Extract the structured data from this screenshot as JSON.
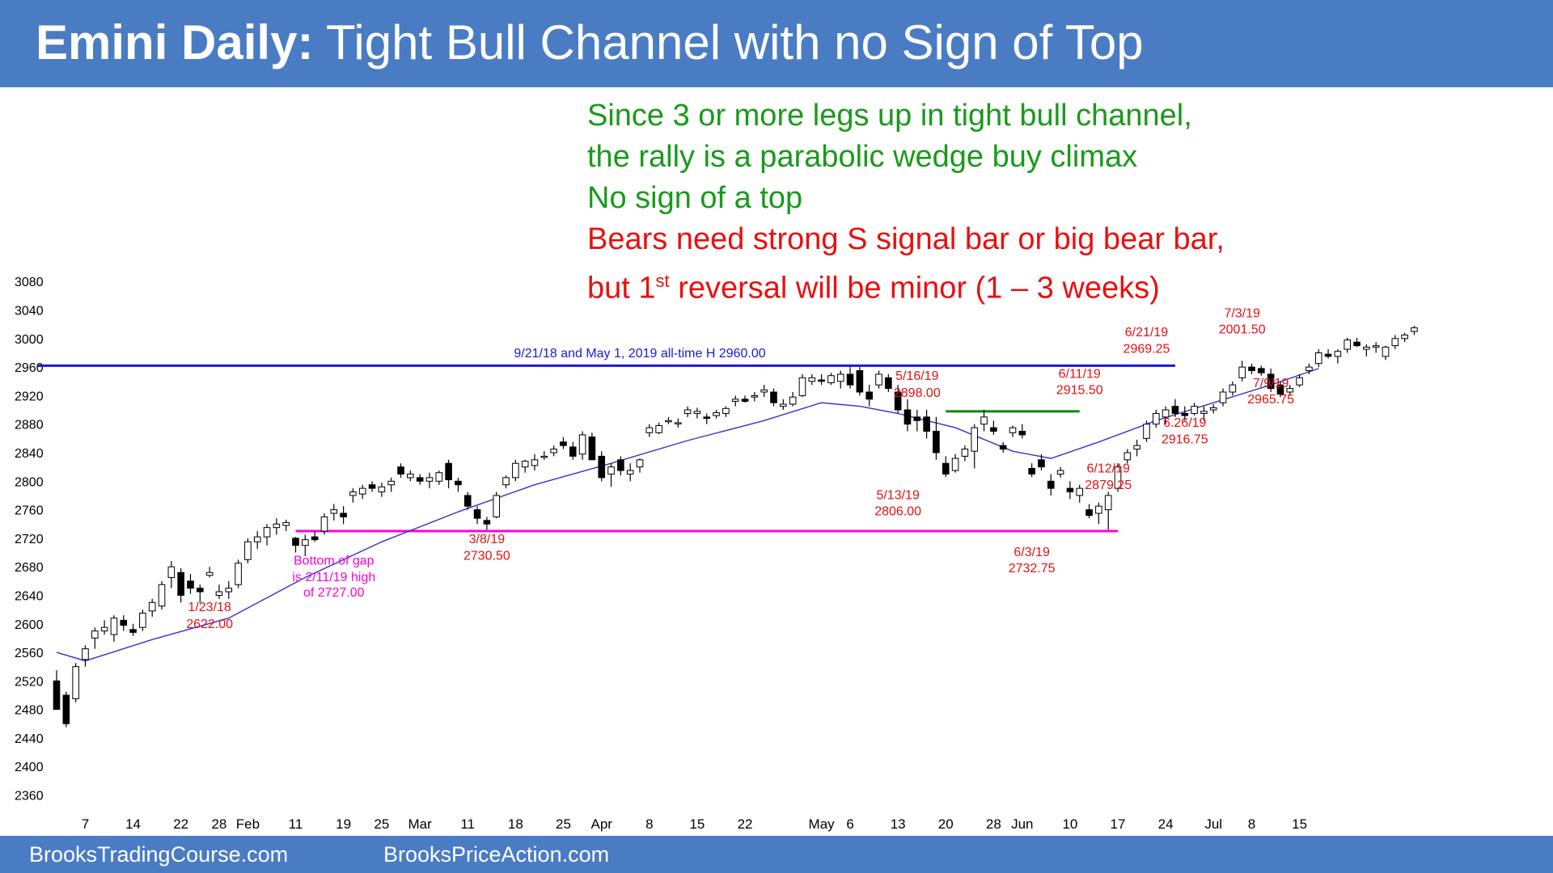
{
  "title": {
    "bold": "Emini Daily:",
    "rest": " Tight Bull Channel with no Sign of Top"
  },
  "footer": {
    "left": "BrooksTradingCourse.com",
    "right": "BrooksPriceAction.com"
  },
  "commentary": {
    "line1": "Since 3 or more legs up in tight bull channel,",
    "line2": "the rally is a parabolic wedge buy climax",
    "line3": "No sign of a top",
    "line4": "Bears need strong S signal bar or big bear bar,",
    "line5_pre": "but 1",
    "line5_sup": "st",
    "line5_post": " reversal will be minor (1 – 3 weeks)"
  },
  "colors": {
    "header": "#4a7cc4",
    "up_candle": "#ffffff",
    "down_candle": "#000000",
    "ema": "#3333cc",
    "resistance": "#1a1ad0",
    "support": "#ff00dd",
    "range_top": "#0a8a0a",
    "annotation": "#e81010",
    "gap_note": "#ff00dd"
  },
  "chart_data": {
    "type": "candlestick",
    "ylim": [
      2330,
      3095
    ],
    "yticks": [
      2360,
      2400,
      2440,
      2480,
      2520,
      2560,
      2600,
      2640,
      2680,
      2720,
      2760,
      2800,
      2840,
      2880,
      2920,
      2960,
      3000,
      3040,
      3080
    ],
    "xticks": [
      {
        "label": "7",
        "bar": 3
      },
      {
        "label": "14",
        "bar": 8
      },
      {
        "label": "22",
        "bar": 13
      },
      {
        "label": "28",
        "bar": 17
      },
      {
        "label": "Feb",
        "bar": 20
      },
      {
        "label": "11",
        "bar": 25
      },
      {
        "label": "19",
        "bar": 30
      },
      {
        "label": "25",
        "bar": 34
      },
      {
        "label": "Mar",
        "bar": 38
      },
      {
        "label": "11",
        "bar": 43
      },
      {
        "label": "18",
        "bar": 48
      },
      {
        "label": "25",
        "bar": 53
      },
      {
        "label": "Apr",
        "bar": 57
      },
      {
        "label": "8",
        "bar": 62
      },
      {
        "label": "15",
        "bar": 67
      },
      {
        "label": "22",
        "bar": 72
      },
      {
        "label": "May",
        "bar": 80
      },
      {
        "label": "6",
        "bar": 83
      },
      {
        "label": "13",
        "bar": 88
      },
      {
        "label": "20",
        "bar": 93
      },
      {
        "label": "28",
        "bar": 98
      },
      {
        "label": "Jun",
        "bar": 101
      },
      {
        "label": "10",
        "bar": 106
      },
      {
        "label": "17",
        "bar": 111
      },
      {
        "label": "24",
        "bar": 116
      },
      {
        "label": "Jul",
        "bar": 121
      },
      {
        "label": "8",
        "bar": 125
      },
      {
        "label": "15",
        "bar": 130
      }
    ],
    "candles": [
      [
        2520,
        2535,
        2480,
        2480
      ],
      [
        2500,
        2505,
        2455,
        2460
      ],
      [
        2495,
        2545,
        2490,
        2540
      ],
      [
        2550,
        2570,
        2540,
        2565
      ],
      [
        2580,
        2595,
        2565,
        2590
      ],
      [
        2590,
        2605,
        2585,
        2595
      ],
      [
        2585,
        2612,
        2575,
        2608
      ],
      [
        2605,
        2612,
        2590,
        2598
      ],
      [
        2592,
        2600,
        2583,
        2588
      ],
      [
        2595,
        2620,
        2590,
        2615
      ],
      [
        2618,
        2635,
        2610,
        2630
      ],
      [
        2625,
        2660,
        2620,
        2655
      ],
      [
        2665,
        2688,
        2650,
        2680
      ],
      [
        2672,
        2678,
        2630,
        2640
      ],
      [
        2660,
        2670,
        2642,
        2650
      ],
      [
        2650,
        2655,
        2630,
        2645
      ],
      [
        2668,
        2680,
        2665,
        2672
      ],
      [
        2640,
        2655,
        2635,
        2645
      ],
      [
        2645,
        2660,
        2635,
        2650
      ],
      [
        2655,
        2690,
        2650,
        2685
      ],
      [
        2690,
        2720,
        2685,
        2715
      ],
      [
        2715,
        2730,
        2705,
        2722
      ],
      [
        2722,
        2740,
        2710,
        2735
      ],
      [
        2735,
        2748,
        2725,
        2740
      ],
      [
        2738,
        2746,
        2730,
        2742
      ],
      [
        2720,
        2722,
        2700,
        2710
      ],
      [
        2710,
        2725,
        2695,
        2718
      ],
      [
        2722,
        2730,
        2715,
        2718
      ],
      [
        2730,
        2755,
        2725,
        2750
      ],
      [
        2755,
        2768,
        2745,
        2760
      ],
      [
        2755,
        2765,
        2740,
        2750
      ],
      [
        2780,
        2790,
        2770,
        2785
      ],
      [
        2782,
        2795,
        2775,
        2790
      ],
      [
        2795,
        2800,
        2785,
        2790
      ],
      [
        2785,
        2798,
        2778,
        2792
      ],
      [
        2795,
        2805,
        2785,
        2800
      ],
      [
        2820,
        2825,
        2805,
        2810
      ],
      [
        2805,
        2815,
        2800,
        2810
      ],
      [
        2805,
        2810,
        2795,
        2800
      ],
      [
        2800,
        2812,
        2790,
        2805
      ],
      [
        2800,
        2815,
        2795,
        2812
      ],
      [
        2825,
        2830,
        2790,
        2802
      ],
      [
        2800,
        2805,
        2785,
        2795
      ],
      [
        2780,
        2785,
        2760,
        2765
      ],
      [
        2760,
        2765,
        2740,
        2748
      ],
      [
        2745,
        2750,
        2732,
        2740
      ],
      [
        2750,
        2785,
        2748,
        2780
      ],
      [
        2795,
        2808,
        2790,
        2805
      ],
      [
        2805,
        2830,
        2800,
        2825
      ],
      [
        2820,
        2830,
        2812,
        2828
      ],
      [
        2822,
        2838,
        2815,
        2830
      ],
      [
        2835,
        2842,
        2830,
        2835
      ],
      [
        2840,
        2850,
        2835,
        2845
      ],
      [
        2855,
        2862,
        2845,
        2850
      ],
      [
        2848,
        2855,
        2830,
        2835
      ],
      [
        2838,
        2870,
        2830,
        2865
      ],
      [
        2862,
        2868,
        2830,
        2830
      ],
      [
        2835,
        2842,
        2800,
        2805
      ],
      [
        2810,
        2825,
        2792,
        2820
      ],
      [
        2830,
        2835,
        2808,
        2815
      ],
      [
        2810,
        2825,
        2800,
        2815
      ],
      [
        2820,
        2832,
        2812,
        2830
      ],
      [
        2868,
        2880,
        2862,
        2875
      ],
      [
        2868,
        2882,
        2866,
        2878
      ],
      [
        2885,
        2890,
        2880,
        2885
      ],
      [
        2882,
        2888,
        2875,
        2882
      ],
      [
        2895,
        2905,
        2890,
        2900
      ],
      [
        2895,
        2903,
        2888,
        2898
      ],
      [
        2890,
        2895,
        2880,
        2888
      ],
      [
        2892,
        2900,
        2888,
        2896
      ],
      [
        2895,
        2905,
        2890,
        2902
      ],
      [
        2912,
        2920,
        2905,
        2915
      ],
      [
        2915,
        2920,
        2910,
        2912
      ],
      [
        2918,
        2925,
        2912,
        2920
      ],
      [
        2925,
        2935,
        2918,
        2928
      ],
      [
        2925,
        2930,
        2905,
        2910
      ],
      [
        2905,
        2915,
        2900,
        2908
      ],
      [
        2908,
        2925,
        2905,
        2918
      ],
      [
        2920,
        2950,
        2918,
        2945
      ],
      [
        2940,
        2950,
        2935,
        2945
      ],
      [
        2942,
        2950,
        2935,
        2940
      ],
      [
        2938,
        2952,
        2935,
        2948
      ],
      [
        2940,
        2955,
        2930,
        2950
      ],
      [
        2950,
        2960,
        2930,
        2935
      ],
      [
        2955,
        2960,
        2920,
        2925
      ],
      [
        2925,
        2935,
        2905,
        2915
      ],
      [
        2935,
        2955,
        2930,
        2950
      ],
      [
        2945,
        2950,
        2925,
        2930
      ],
      [
        2925,
        2935,
        2895,
        2900
      ],
      [
        2900,
        2915,
        2870,
        2880
      ],
      [
        2890,
        2900,
        2870,
        2885
      ],
      [
        2890,
        2900,
        2860,
        2870
      ],
      [
        2870,
        2890,
        2830,
        2840
      ],
      [
        2825,
        2835,
        2806,
        2810
      ],
      [
        2815,
        2838,
        2812,
        2832
      ],
      [
        2835,
        2850,
        2828,
        2845
      ],
      [
        2842,
        2880,
        2818,
        2875
      ],
      [
        2880,
        2900,
        2870,
        2890
      ],
      [
        2875,
        2885,
        2865,
        2870
      ],
      [
        2850,
        2855,
        2840,
        2845
      ],
      [
        2868,
        2878,
        2862,
        2875
      ],
      [
        2870,
        2880,
        2860,
        2865
      ],
      [
        2818,
        2825,
        2806,
        2810
      ],
      [
        2830,
        2838,
        2815,
        2820
      ],
      [
        2800,
        2810,
        2780,
        2790
      ],
      [
        2810,
        2820,
        2805,
        2815
      ],
      [
        2790,
        2800,
        2775,
        2785
      ],
      [
        2780,
        2795,
        2770,
        2790
      ],
      [
        2760,
        2768,
        2748,
        2752
      ],
      [
        2755,
        2770,
        2740,
        2765
      ],
      [
        2760,
        2785,
        2732,
        2780
      ],
      [
        2790,
        2825,
        2785,
        2820
      ],
      [
        2830,
        2845,
        2825,
        2840
      ],
      [
        2845,
        2858,
        2835,
        2850
      ],
      [
        2860,
        2885,
        2855,
        2880
      ],
      [
        2880,
        2900,
        2875,
        2895
      ],
      [
        2890,
        2905,
        2880,
        2900
      ],
      [
        2905,
        2915,
        2890,
        2895
      ],
      [
        2895,
        2905,
        2885,
        2892
      ],
      [
        2895,
        2910,
        2892,
        2905
      ],
      [
        2895,
        2905,
        2885,
        2898
      ],
      [
        2900,
        2908,
        2895,
        2903
      ],
      [
        2910,
        2930,
        2905,
        2925
      ],
      [
        2925,
        2940,
        2920,
        2935
      ],
      [
        2945,
        2969,
        2940,
        2960
      ],
      [
        2960,
        2965,
        2950,
        2955
      ],
      [
        2958,
        2962,
        2948,
        2952
      ],
      [
        2950,
        2958,
        2925,
        2930
      ],
      [
        2935,
        2940,
        2918,
        2922
      ],
      [
        2925,
        2935,
        2920,
        2930
      ],
      [
        2935,
        2950,
        2932,
        2945
      ],
      [
        2955,
        2965,
        2950,
        2960
      ],
      [
        2965,
        2985,
        2960,
        2980
      ],
      [
        2978,
        2985,
        2972,
        2975
      ],
      [
        2975,
        2985,
        2965,
        2982
      ],
      [
        2985,
        3001,
        2980,
        2998
      ],
      [
        2995,
        3001,
        2988,
        2990
      ],
      [
        2985,
        2992,
        2975,
        2988
      ],
      [
        2988,
        2995,
        2980,
        2990
      ],
      [
        2975,
        2990,
        2970,
        2988
      ],
      [
        2990,
        3005,
        2985,
        3000
      ],
      [
        3000,
        3008,
        2995,
        3005
      ],
      [
        3010,
        3018,
        3005,
        3015
      ]
    ],
    "ema": [
      [
        0,
        2560
      ],
      [
        3,
        2548
      ],
      [
        10,
        2578
      ],
      [
        18,
        2608
      ],
      [
        26,
        2665
      ],
      [
        34,
        2715
      ],
      [
        42,
        2757
      ],
      [
        50,
        2795
      ],
      [
        58,
        2825
      ],
      [
        66,
        2857
      ],
      [
        74,
        2885
      ],
      [
        80,
        2910
      ],
      [
        84,
        2905
      ],
      [
        88,
        2895
      ],
      [
        94,
        2875
      ],
      [
        100,
        2842
      ],
      [
        104,
        2832
      ],
      [
        109,
        2855
      ],
      [
        115,
        2885
      ],
      [
        121,
        2910
      ],
      [
        127,
        2935
      ],
      [
        132,
        2958
      ]
    ],
    "lines": [
      {
        "name": "all-time-high-2960",
        "y": 2962,
        "x0": -2,
        "x1": 117,
        "color": "#1a1ad0"
      },
      {
        "name": "support-2730",
        "y": 2730,
        "x0": 25,
        "x1": 111,
        "color": "#ff00dd"
      },
      {
        "name": "range-top-2898",
        "y": 2898,
        "x0": 93,
        "x1": 107,
        "color": "#0a8a0a"
      }
    ],
    "annotations": [
      {
        "text": "9/21/18 and May 1, 2019 all-time H 2960.00",
        "bar": 61,
        "price": 2974,
        "color": "#1a1ad0"
      },
      {
        "text": "1/23/18",
        "bar": 16,
        "price": 2618,
        "color": "#e81010"
      },
      {
        "text": "2622.00",
        "bar": 16,
        "price": 2594,
        "color": "#e81010"
      },
      {
        "text": "Bottom of gap",
        "bar": 29,
        "price": 2683,
        "color": "#ff00dd"
      },
      {
        "text": "is 2/11/19 high",
        "bar": 29,
        "price": 2660,
        "color": "#ff00dd"
      },
      {
        "text": "of 2727.00",
        "bar": 29,
        "price": 2638,
        "color": "#ff00dd"
      },
      {
        "text": "3/8/19",
        "bar": 45,
        "price": 2713,
        "color": "#e81010"
      },
      {
        "text": "2730.50",
        "bar": 45,
        "price": 2690,
        "color": "#e81010"
      },
      {
        "text": "5/16/19",
        "bar": 90,
        "price": 2942,
        "color": "#e81010"
      },
      {
        "text": "2898.00",
        "bar": 90,
        "price": 2918,
        "color": "#e81010"
      },
      {
        "text": "5/13/19",
        "bar": 88,
        "price": 2775,
        "color": "#e81010"
      },
      {
        "text": "2806.00",
        "bar": 88,
        "price": 2752,
        "color": "#e81010"
      },
      {
        "text": "6/3/19",
        "bar": 102,
        "price": 2695,
        "color": "#e81010"
      },
      {
        "text": "2732.75",
        "bar": 102,
        "price": 2672,
        "color": "#e81010"
      },
      {
        "text": "6/11/19",
        "bar": 107,
        "price": 2945,
        "color": "#e81010"
      },
      {
        "text": "2915.50",
        "bar": 107,
        "price": 2922,
        "color": "#e81010"
      },
      {
        "text": "6/12/19",
        "bar": 110,
        "price": 2812,
        "color": "#e81010"
      },
      {
        "text": "2879.25",
        "bar": 110,
        "price": 2789,
        "color": "#e81010"
      },
      {
        "text": "6/21/19",
        "bar": 114,
        "price": 3003,
        "color": "#e81010"
      },
      {
        "text": "2969.25",
        "bar": 114,
        "price": 2980,
        "color": "#e81010"
      },
      {
        "text": "7/3/19",
        "bar": 124,
        "price": 3030,
        "color": "#e81010"
      },
      {
        "text": "2001.50",
        "bar": 124,
        "price": 3007,
        "color": "#e81010"
      },
      {
        "text": "7/9/19",
        "bar": 127,
        "price": 2932,
        "color": "#e81010"
      },
      {
        "text": "2965.75",
        "bar": 127,
        "price": 2909,
        "color": "#e81010"
      },
      {
        "text": "6.26/19",
        "bar": 118,
        "price": 2876,
        "color": "#e81010"
      },
      {
        "text": "2916.75",
        "bar": 118,
        "price": 2853,
        "color": "#e81010"
      }
    ]
  }
}
